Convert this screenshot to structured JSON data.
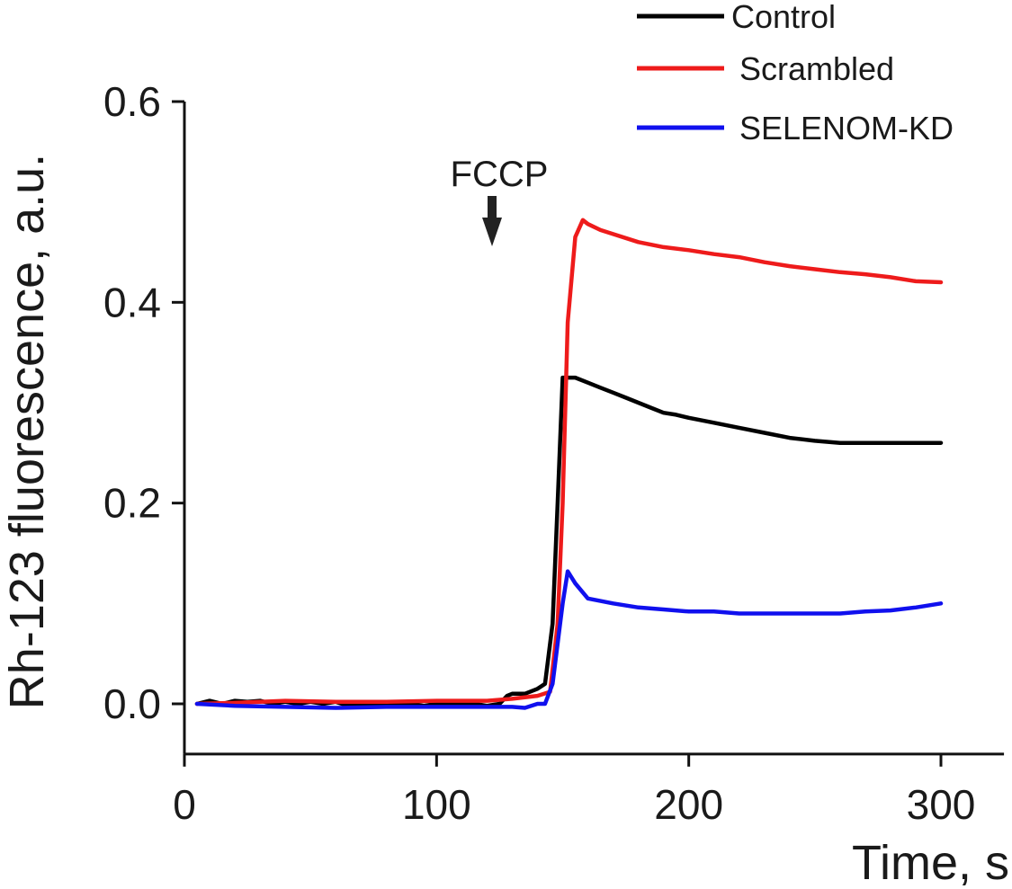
{
  "chart_data": {
    "type": "line",
    "title": "",
    "xlabel": "Time, s",
    "ylabel": "Rh-123 fluorescence, a.u.",
    "xlim": [
      0,
      325
    ],
    "ylim": [
      -0.05,
      0.6
    ],
    "xticks": [
      0,
      100,
      200,
      300
    ],
    "yticks": [
      0.0,
      0.2,
      0.4,
      0.6
    ],
    "xtick_labels": [
      "0",
      "100",
      "200",
      "300"
    ],
    "ytick_labels": [
      "0.0",
      "0.2",
      "0.4",
      "0.6"
    ],
    "grid": false,
    "legend_position": "top-right",
    "annotation": {
      "text": "FCCP",
      "x": 122,
      "kind": "down-arrow"
    },
    "series": [
      {
        "name": "Control",
        "color": "#000000",
        "x": [
          5,
          10,
          15,
          20,
          25,
          30,
          35,
          40,
          45,
          50,
          55,
          60,
          65,
          70,
          75,
          80,
          85,
          90,
          95,
          100,
          105,
          110,
          115,
          120,
          125,
          128,
          130,
          135,
          140,
          143,
          146,
          148,
          150,
          155,
          160,
          165,
          170,
          175,
          180,
          185,
          190,
          195,
          200,
          210,
          220,
          230,
          240,
          250,
          260,
          270,
          280,
          290,
          300
        ],
        "y": [
          0.0,
          0.003,
          0.0,
          0.003,
          0.002,
          0.003,
          0.0,
          0.002,
          0.0,
          0.002,
          0.0,
          0.002,
          -0.002,
          0.0,
          0.0,
          -0.002,
          0.0,
          0.0,
          -0.002,
          0.0,
          0.0,
          0.0,
          0.0,
          -0.002,
          0.0,
          0.008,
          0.01,
          0.01,
          0.015,
          0.02,
          0.08,
          0.2,
          0.325,
          0.325,
          0.32,
          0.315,
          0.31,
          0.305,
          0.3,
          0.295,
          0.29,
          0.288,
          0.285,
          0.28,
          0.275,
          0.27,
          0.265,
          0.262,
          0.26,
          0.26,
          0.26,
          0.26,
          0.26
        ]
      },
      {
        "name": "Scrambled",
        "color": "#ee1b1b",
        "x": [
          5,
          20,
          40,
          60,
          80,
          100,
          120,
          130,
          140,
          145,
          148,
          150,
          152,
          155,
          158,
          160,
          165,
          170,
          180,
          190,
          200,
          210,
          220,
          230,
          240,
          250,
          260,
          270,
          280,
          290,
          300
        ],
        "y": [
          0.0,
          0.001,
          0.003,
          0.002,
          0.002,
          0.003,
          0.003,
          0.005,
          0.008,
          0.012,
          0.08,
          0.2,
          0.38,
          0.465,
          0.482,
          0.478,
          0.472,
          0.468,
          0.46,
          0.455,
          0.452,
          0.448,
          0.445,
          0.44,
          0.436,
          0.433,
          0.43,
          0.428,
          0.425,
          0.421,
          0.42
        ]
      },
      {
        "name": "SELENOM-KD",
        "color": "#1010ee",
        "x": [
          5,
          20,
          40,
          60,
          80,
          100,
          120,
          130,
          135,
          140,
          143,
          146,
          148,
          150,
          152,
          155,
          160,
          170,
          180,
          190,
          200,
          210,
          220,
          230,
          240,
          250,
          260,
          270,
          280,
          290,
          300
        ],
        "y": [
          0.0,
          -0.002,
          -0.003,
          -0.004,
          -0.003,
          -0.003,
          -0.003,
          -0.003,
          -0.004,
          0.0,
          0.0,
          0.02,
          0.06,
          0.1,
          0.132,
          0.12,
          0.105,
          0.1,
          0.096,
          0.094,
          0.092,
          0.092,
          0.09,
          0.09,
          0.09,
          0.09,
          0.09,
          0.092,
          0.093,
          0.096,
          0.1
        ]
      }
    ]
  }
}
